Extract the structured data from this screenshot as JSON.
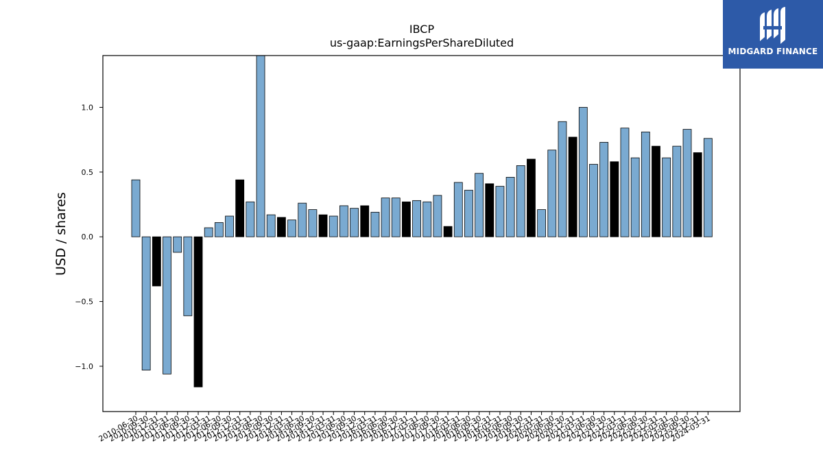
{
  "brand": {
    "name": "MIDGARD FINANCE",
    "logo_icon": "midgard-m-logo-icon",
    "bg_color": "#2d5aa8"
  },
  "chart_data": {
    "type": "bar",
    "title": "IBCP",
    "subtitle": "us-gaap:EarningsPerShareDiluted",
    "xlabel": "",
    "ylabel": "USD / shares",
    "ylim": [
      -1.35,
      1.4
    ],
    "yticks": [
      -1.0,
      -0.5,
      0.0,
      0.5,
      1.0
    ],
    "ytick_labels": [
      "−1.0",
      "−0.5",
      "0.0",
      "0.5",
      "1.0"
    ],
    "grid": false,
    "legend": "none",
    "colors": {
      "quarter": "#7aaad1",
      "annual": "#000000"
    },
    "categories": [
      "2010-06-30",
      "2010-09-30",
      "2010-12-31",
      "2011-03-31",
      "2011-06-30",
      "2011-09-30",
      "2011-12-31",
      "2012-03-31",
      "2012-06-30",
      "2012-09-30",
      "2012-12-31",
      "2013-03-31",
      "2013-06-30",
      "2013-09-30",
      "2013-12-31",
      "2014-03-31",
      "2014-06-30",
      "2014-09-30",
      "2014-12-31",
      "2015-03-31",
      "2015-06-30",
      "2015-09-30",
      "2015-12-31",
      "2016-03-31",
      "2016-06-30",
      "2016-09-30",
      "2016-12-31",
      "2017-03-31",
      "2017-06-30",
      "2017-09-30",
      "2017-12-31",
      "2018-03-31",
      "2018-06-30",
      "2018-09-30",
      "2018-12-31",
      "2019-03-31",
      "2019-06-30",
      "2019-09-30",
      "2019-12-31",
      "2020-03-31",
      "2020-06-30",
      "2020-09-30",
      "2020-12-31",
      "2021-03-31",
      "2021-06-30",
      "2021-09-30",
      "2021-12-31",
      "2022-03-31",
      "2022-06-30",
      "2022-09-30",
      "2022-12-31",
      "2023-03-31",
      "2023-06-30",
      "2023-09-30",
      "2023-12-31",
      "2024-03-31"
    ],
    "values": [
      0.44,
      -1.03,
      -0.38,
      -1.06,
      -0.12,
      -0.61,
      -1.16,
      0.07,
      0.11,
      0.16,
      0.44,
      0.27,
      1.42,
      0.17,
      0.15,
      0.13,
      0.26,
      0.21,
      0.17,
      0.16,
      0.24,
      0.22,
      0.24,
      0.19,
      0.3,
      0.3,
      0.27,
      0.28,
      0.27,
      0.32,
      0.08,
      0.42,
      0.36,
      0.49,
      0.41,
      0.39,
      0.46,
      0.55,
      0.6,
      0.21,
      0.67,
      0.89,
      0.77,
      1.0,
      0.56,
      0.73,
      0.58,
      0.84,
      0.61,
      0.81,
      0.7,
      0.61,
      0.7,
      0.83,
      0.65,
      0.76
    ],
    "annual": [
      false,
      false,
      true,
      false,
      false,
      false,
      true,
      false,
      false,
      false,
      true,
      false,
      false,
      false,
      true,
      false,
      false,
      false,
      true,
      false,
      false,
      false,
      true,
      false,
      false,
      false,
      true,
      false,
      false,
      false,
      true,
      false,
      false,
      false,
      true,
      false,
      false,
      false,
      true,
      false,
      false,
      false,
      true,
      false,
      false,
      false,
      true,
      false,
      false,
      false,
      true,
      false,
      false,
      false,
      true,
      false
    ]
  }
}
